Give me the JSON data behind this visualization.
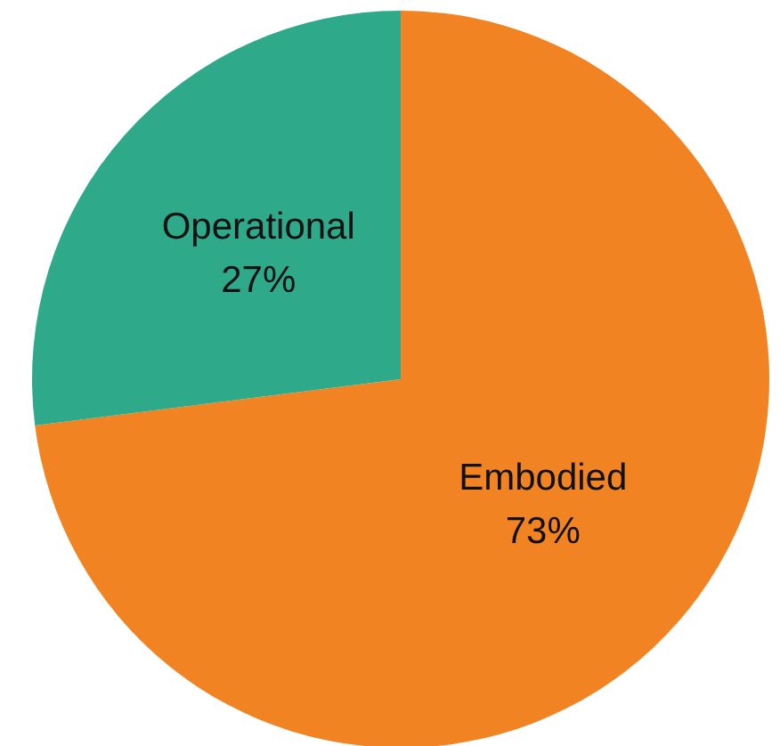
{
  "chart_data": {
    "type": "pie",
    "categories": [
      "Embodied",
      "Operational"
    ],
    "values": [
      73,
      27
    ],
    "colors": [
      "#f28322",
      "#2eaa8a"
    ],
    "value_labels": [
      "73%",
      "27%"
    ],
    "legend": false
  }
}
